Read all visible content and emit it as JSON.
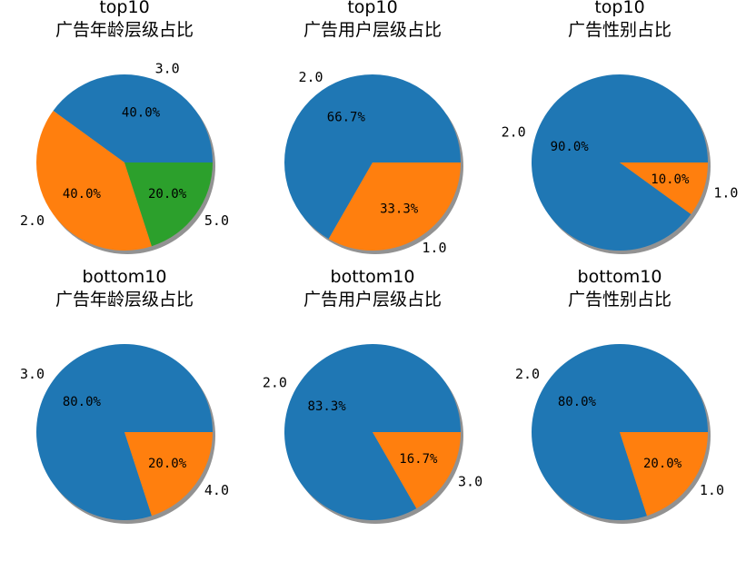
{
  "colors": {
    "c0": "#1f77b4",
    "c1": "#ff7f0e",
    "c2": "#2ca02c",
    "shadow": "#7f7f7f"
  },
  "chart_data": [
    {
      "type": "pie",
      "title": "top10",
      "subtitle": "广告年龄层级占比",
      "slices": [
        {
          "label": "3.0",
          "value": 40.0,
          "pct_text": "40.0%"
        },
        {
          "label": "2.0",
          "value": 40.0,
          "pct_text": "40.0%"
        },
        {
          "label": "5.0",
          "value": 20.0,
          "pct_text": "20.0%"
        }
      ]
    },
    {
      "type": "pie",
      "title": "top10",
      "subtitle": "广告用户层级占比",
      "slices": [
        {
          "label": "2.0",
          "value": 66.7,
          "pct_text": "66.7%"
        },
        {
          "label": "1.0",
          "value": 33.3,
          "pct_text": "33.3%"
        }
      ]
    },
    {
      "type": "pie",
      "title": "top10",
      "subtitle": "广告性别占比",
      "slices": [
        {
          "label": "2.0",
          "value": 90.0,
          "pct_text": "90.0%"
        },
        {
          "label": "1.0",
          "value": 10.0,
          "pct_text": "10.0%"
        }
      ]
    },
    {
      "type": "pie",
      "title": "bottom10",
      "subtitle": "广告年龄层级占比",
      "slices": [
        {
          "label": "3.0",
          "value": 80.0,
          "pct_text": "80.0%"
        },
        {
          "label": "4.0",
          "value": 20.0,
          "pct_text": "20.0%"
        }
      ]
    },
    {
      "type": "pie",
      "title": "bottom10",
      "subtitle": "广告用户层级占比",
      "slices": [
        {
          "label": "2.0",
          "value": 83.3,
          "pct_text": "83.3%"
        },
        {
          "label": "3.0",
          "value": 16.7,
          "pct_text": "16.7%"
        }
      ]
    },
    {
      "type": "pie",
      "title": "bottom10",
      "subtitle": "广告性别占比",
      "slices": [
        {
          "label": "2.0",
          "value": 80.0,
          "pct_text": "80.0%"
        },
        {
          "label": "1.0",
          "value": 20.0,
          "pct_text": "20.0%"
        }
      ]
    }
  ]
}
